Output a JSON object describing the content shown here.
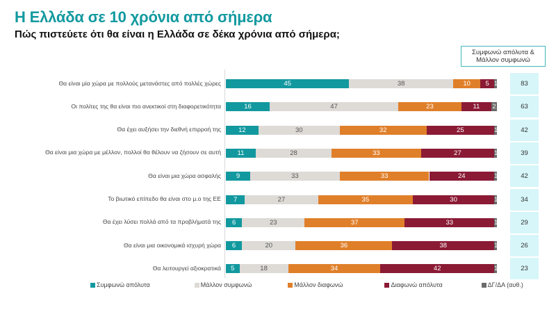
{
  "header": {
    "title": "Η Ελλάδα σε 10 χρόνια από σήμερα",
    "subtitle": "Πώς πιστεύετε ότι θα είναι η Ελλάδα σε δέκα χρόνια από σήμερα;"
  },
  "summary": {
    "header_line1": "Συμφωνώ απόλυτα &",
    "header_line2": "Μάλλον συμφωνώ",
    "values": [
      "83",
      "63",
      "42",
      "39",
      "42",
      "34",
      "29",
      "26",
      "23"
    ]
  },
  "colors": {
    "strongly_agree": "#12999f",
    "somewhat_agree": "#dedad6",
    "somewhat_disagree": "#e07f2a",
    "strongly_disagree": "#8b1a35",
    "dk_na": "#6b6b6b",
    "title": "#12999f",
    "summary_bg": "#d7f6f9"
  },
  "chart_data": {
    "type": "bar",
    "orientation": "horizontal",
    "stacked": true,
    "title": "Η Ελλάδα σε 10 χρόνια από σήμερα",
    "subtitle": "Πώς πιστεύετε ότι θα είναι η Ελλάδα σε δέκα χρόνια από σήμερα;",
    "xlabel": "",
    "ylabel": "",
    "xlim": [
      0,
      100
    ],
    "grid": false,
    "legend_position": "bottom",
    "categories": [
      "Θα είναι μία χώρα με πολλούς μετανάστες από πολλές χώρες",
      "Οι πολίτες της θα είναι πιο ανεκτικοί στη διαφορετικότητα",
      "Θα έχει αυξήσει την διεθνή επιρροή της",
      "Θα είναι μια χώρα με μέλλον, πολλοί θα θέλουν να ζήσουν σε αυτή",
      "Θα είναι μια χώρα ασφαλής",
      "Το βιωτικό επίπεδο θα είναι στο μ.ο της ΕΕ",
      "Θα έχει λύσει πολλά από τα προβλήματά της",
      "Θα είναι μια οικονομικά ισχυρή χώρα",
      "Θα λειτουργεί αξιοκρατικά"
    ],
    "series": [
      {
        "name": "Συμφωνώ απόλυτα",
        "color": "#12999f",
        "label_color": "#ffffff",
        "values": [
          45,
          16,
          12,
          11,
          9,
          7,
          6,
          6,
          5
        ]
      },
      {
        "name": "Μάλλον συμφωνώ",
        "color": "#dedad6",
        "label_color": "#555555",
        "values": [
          38,
          47,
          30,
          28,
          33,
          27,
          23,
          20,
          18
        ]
      },
      {
        "name": "Μάλλον διαφωνώ",
        "color": "#e07f2a",
        "label_color": "#ffffff",
        "values": [
          10,
          23,
          32,
          33,
          33,
          35,
          37,
          36,
          34
        ]
      },
      {
        "name": "Διαφωνώ απόλυτα",
        "color": "#8b1a35",
        "label_color": "#ffffff",
        "values": [
          5,
          11,
          25,
          27,
          24,
          30,
          33,
          38,
          42
        ]
      },
      {
        "name": "ΔΓ/ΔΑ (αυθ.)",
        "color": "#6b6b6b",
        "label_color": "#ffffff",
        "values": [
          1,
          2,
          1,
          1,
          1,
          1,
          1,
          1,
          1
        ]
      }
    ]
  }
}
